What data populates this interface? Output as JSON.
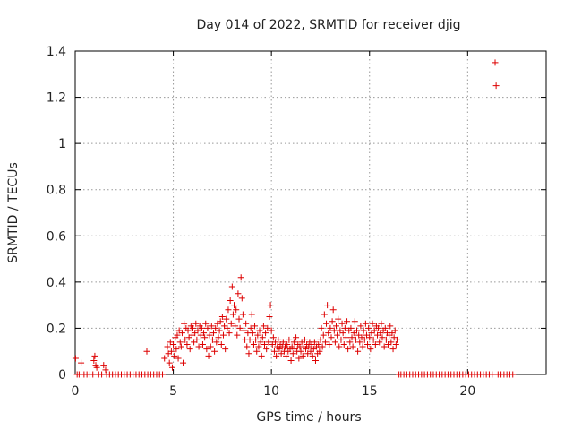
{
  "chart_data": {
    "type": "scatter",
    "title": "Day 014 of 2022, SRMTID for receiver djig",
    "xlabel": "GPS time / hours",
    "ylabel": "SRMTID / TECUs",
    "xlim": [
      0,
      24
    ],
    "ylim": [
      0,
      1.4
    ],
    "xticks": [
      0,
      5,
      10,
      15,
      20
    ],
    "xtick_labels": [
      "0",
      "5",
      "10",
      "15",
      "20"
    ],
    "yticks": [
      0,
      0.2,
      0.4,
      0.6,
      0.8,
      1.0,
      1.2,
      1.4
    ],
    "ytick_labels": [
      "0",
      "0.2",
      "0.4",
      "0.6",
      "0.8",
      "1",
      "1.2",
      "1.4"
    ],
    "grid": true,
    "marker": "+",
    "marker_color": "#dd0000",
    "series": [
      {
        "name": "SRMTID",
        "points": [
          [
            0.02,
            0.07
          ],
          [
            0.1,
            0.0
          ],
          [
            0.2,
            0.0
          ],
          [
            0.3,
            0.05
          ],
          [
            0.45,
            0.0
          ],
          [
            0.6,
            0.0
          ],
          [
            0.75,
            0.0
          ],
          [
            0.9,
            0.0
          ],
          [
            0.95,
            0.06
          ],
          [
            1.0,
            0.08
          ],
          [
            1.05,
            0.04
          ],
          [
            1.1,
            0.03
          ],
          [
            1.2,
            0.0
          ],
          [
            1.35,
            0.0
          ],
          [
            1.45,
            0.04
          ],
          [
            1.55,
            0.02
          ],
          [
            1.6,
            0.0
          ],
          [
            1.75,
            0.0
          ],
          [
            1.9,
            0.0
          ],
          [
            2.05,
            0.0
          ],
          [
            2.2,
            0.0
          ],
          [
            2.35,
            0.0
          ],
          [
            2.5,
            0.0
          ],
          [
            2.65,
            0.0
          ],
          [
            2.8,
            0.0
          ],
          [
            2.95,
            0.0
          ],
          [
            3.1,
            0.0
          ],
          [
            3.25,
            0.0
          ],
          [
            3.4,
            0.0
          ],
          [
            3.55,
            0.0
          ],
          [
            3.65,
            0.1
          ],
          [
            3.7,
            0.0
          ],
          [
            3.85,
            0.0
          ],
          [
            4.0,
            0.0
          ],
          [
            4.15,
            0.0
          ],
          [
            4.3,
            0.0
          ],
          [
            4.45,
            0.0
          ],
          [
            4.55,
            0.07
          ],
          [
            4.7,
            0.12
          ],
          [
            4.75,
            0.09
          ],
          [
            4.8,
            0.05
          ],
          [
            4.85,
            0.14
          ],
          [
            4.9,
            0.1
          ],
          [
            4.95,
            0.03
          ],
          [
            5.0,
            0.13
          ],
          [
            5.05,
            0.08
          ],
          [
            5.1,
            0.16
          ],
          [
            5.15,
            0.11
          ],
          [
            5.2,
            0.17
          ],
          [
            5.25,
            0.07
          ],
          [
            5.3,
            0.19
          ],
          [
            5.35,
            0.14
          ],
          [
            5.4,
            0.12
          ],
          [
            5.45,
            0.18
          ],
          [
            5.5,
            0.05
          ],
          [
            5.55,
            0.22
          ],
          [
            5.6,
            0.15
          ],
          [
            5.65,
            0.2
          ],
          [
            5.7,
            0.13
          ],
          [
            5.75,
            0.19
          ],
          [
            5.8,
            0.16
          ],
          [
            5.85,
            0.11
          ],
          [
            5.9,
            0.21
          ],
          [
            5.95,
            0.17
          ],
          [
            6.0,
            0.2
          ],
          [
            6.05,
            0.14
          ],
          [
            6.1,
            0.18
          ],
          [
            6.15,
            0.22
          ],
          [
            6.2,
            0.15
          ],
          [
            6.25,
            0.19
          ],
          [
            6.3,
            0.12
          ],
          [
            6.35,
            0.21
          ],
          [
            6.4,
            0.17
          ],
          [
            6.45,
            0.2
          ],
          [
            6.5,
            0.13
          ],
          [
            6.55,
            0.18
          ],
          [
            6.6,
            0.16
          ],
          [
            6.65,
            0.22
          ],
          [
            6.7,
            0.11
          ],
          [
            6.75,
            0.2
          ],
          [
            6.8,
            0.08
          ],
          [
            6.85,
            0.17
          ],
          [
            6.9,
            0.12
          ],
          [
            6.95,
            0.21
          ],
          [
            7.0,
            0.15
          ],
          [
            7.05,
            0.18
          ],
          [
            7.1,
            0.1
          ],
          [
            7.15,
            0.2
          ],
          [
            7.2,
            0.14
          ],
          [
            7.25,
            0.22
          ],
          [
            7.3,
            0.16
          ],
          [
            7.35,
            0.19
          ],
          [
            7.4,
            0.23
          ],
          [
            7.45,
            0.13
          ],
          [
            7.5,
            0.25
          ],
          [
            7.55,
            0.17
          ],
          [
            7.6,
            0.21
          ],
          [
            7.65,
            0.11
          ],
          [
            7.7,
            0.24
          ],
          [
            7.75,
            0.2
          ],
          [
            7.8,
            0.28
          ],
          [
            7.85,
            0.18
          ],
          [
            7.9,
            0.32
          ],
          [
            7.95,
            0.22
          ],
          [
            8.0,
            0.38
          ],
          [
            8.05,
            0.26
          ],
          [
            8.1,
            0.3
          ],
          [
            8.15,
            0.21
          ],
          [
            8.2,
            0.28
          ],
          [
            8.25,
            0.17
          ],
          [
            8.3,
            0.35
          ],
          [
            8.35,
            0.24
          ],
          [
            8.4,
            0.2
          ],
          [
            8.45,
            0.42
          ],
          [
            8.5,
            0.33
          ],
          [
            8.55,
            0.26
          ],
          [
            8.6,
            0.19
          ],
          [
            8.65,
            0.15
          ],
          [
            8.7,
            0.22
          ],
          [
            8.75,
            0.12
          ],
          [
            8.8,
            0.18
          ],
          [
            8.85,
            0.09
          ],
          [
            8.9,
            0.15
          ],
          [
            8.95,
            0.2
          ],
          [
            9.0,
            0.26
          ],
          [
            9.05,
            0.18
          ],
          [
            9.1,
            0.13
          ],
          [
            9.15,
            0.21
          ],
          [
            9.2,
            0.15
          ],
          [
            9.25,
            0.1
          ],
          [
            9.3,
            0.17
          ],
          [
            9.35,
            0.12
          ],
          [
            9.4,
            0.19
          ],
          [
            9.45,
            0.14
          ],
          [
            9.5,
            0.08
          ],
          [
            9.55,
            0.16
          ],
          [
            9.6,
            0.21
          ],
          [
            9.65,
            0.13
          ],
          [
            9.7,
            0.18
          ],
          [
            9.75,
            0.11
          ],
          [
            9.8,
            0.2
          ],
          [
            9.85,
            0.14
          ],
          [
            9.9,
            0.25
          ],
          [
            9.95,
            0.3
          ],
          [
            10.0,
            0.19
          ],
          [
            10.05,
            0.13
          ],
          [
            10.1,
            0.16
          ],
          [
            10.15,
            0.1
          ],
          [
            10.2,
            0.14
          ],
          [
            10.25,
            0.08
          ],
          [
            10.3,
            0.12
          ],
          [
            10.35,
            0.15
          ],
          [
            10.4,
            0.11
          ],
          [
            10.45,
            0.13
          ],
          [
            10.5,
            0.09
          ],
          [
            10.55,
            0.12
          ],
          [
            10.6,
            0.14
          ],
          [
            10.65,
            0.1
          ],
          [
            10.7,
            0.12
          ],
          [
            10.75,
            0.08
          ],
          [
            10.8,
            0.13
          ],
          [
            10.85,
            0.1
          ],
          [
            10.9,
            0.15
          ],
          [
            10.95,
            0.11
          ],
          [
            11.0,
            0.06
          ],
          [
            11.05,
            0.12
          ],
          [
            11.1,
            0.09
          ],
          [
            11.15,
            0.14
          ],
          [
            11.2,
            0.11
          ],
          [
            11.25,
            0.16
          ],
          [
            11.3,
            0.1
          ],
          [
            11.35,
            0.13
          ],
          [
            11.4,
            0.07
          ],
          [
            11.45,
            0.12
          ],
          [
            11.5,
            0.1
          ],
          [
            11.55,
            0.14
          ],
          [
            11.6,
            0.08
          ],
          [
            11.65,
            0.12
          ],
          [
            11.7,
            0.15
          ],
          [
            11.75,
            0.11
          ],
          [
            11.8,
            0.13
          ],
          [
            11.85,
            0.09
          ],
          [
            11.9,
            0.12
          ],
          [
            11.95,
            0.14
          ],
          [
            12.0,
            0.1
          ],
          [
            12.05,
            0.13
          ],
          [
            12.1,
            0.08
          ],
          [
            12.15,
            0.11
          ],
          [
            12.2,
            0.14
          ],
          [
            12.25,
            0.06
          ],
          [
            12.3,
            0.12
          ],
          [
            12.35,
            0.09
          ],
          [
            12.4,
            0.13
          ],
          [
            12.45,
            0.1
          ],
          [
            12.5,
            0.15
          ],
          [
            12.55,
            0.2
          ],
          [
            12.6,
            0.12
          ],
          [
            12.65,
            0.17
          ],
          [
            12.7,
            0.26
          ],
          [
            12.75,
            0.14
          ],
          [
            12.8,
            0.22
          ],
          [
            12.85,
            0.3
          ],
          [
            12.9,
            0.18
          ],
          [
            12.95,
            0.13
          ],
          [
            13.0,
            0.2
          ],
          [
            13.05,
            0.16
          ],
          [
            13.1,
            0.23
          ],
          [
            13.15,
            0.28
          ],
          [
            13.2,
            0.19
          ],
          [
            13.25,
            0.14
          ],
          [
            13.3,
            0.21
          ],
          [
            13.35,
            0.17
          ],
          [
            13.4,
            0.24
          ],
          [
            13.45,
            0.12
          ],
          [
            13.5,
            0.19
          ],
          [
            13.55,
            0.15
          ],
          [
            13.6,
            0.22
          ],
          [
            13.65,
            0.18
          ],
          [
            13.7,
            0.13
          ],
          [
            13.75,
            0.2
          ],
          [
            13.8,
            0.16
          ],
          [
            13.85,
            0.23
          ],
          [
            13.9,
            0.11
          ],
          [
            13.95,
            0.19
          ],
          [
            14.0,
            0.14
          ],
          [
            14.05,
            0.2
          ],
          [
            14.1,
            0.16
          ],
          [
            14.15,
            0.12
          ],
          [
            14.2,
            0.18
          ],
          [
            14.25,
            0.23
          ],
          [
            14.3,
            0.15
          ],
          [
            14.35,
            0.19
          ],
          [
            14.4,
            0.1
          ],
          [
            14.45,
            0.17
          ],
          [
            14.5,
            0.14
          ],
          [
            14.55,
            0.21
          ],
          [
            14.6,
            0.16
          ],
          [
            14.65,
            0.12
          ],
          [
            14.7,
            0.19
          ],
          [
            14.75,
            0.15
          ],
          [
            14.8,
            0.22
          ],
          [
            14.85,
            0.17
          ],
          [
            14.9,
            0.13
          ],
          [
            14.95,
            0.2
          ],
          [
            15.0,
            0.16
          ],
          [
            15.05,
            0.11
          ],
          [
            15.1,
            0.18
          ],
          [
            15.15,
            0.22
          ],
          [
            15.2,
            0.15
          ],
          [
            15.25,
            0.19
          ],
          [
            15.3,
            0.13
          ],
          [
            15.35,
            0.21
          ],
          [
            15.4,
            0.17
          ],
          [
            15.45,
            0.2
          ],
          [
            15.5,
            0.14
          ],
          [
            15.55,
            0.18
          ],
          [
            15.6,
            0.22
          ],
          [
            15.65,
            0.16
          ],
          [
            15.7,
            0.19
          ],
          [
            15.75,
            0.12
          ],
          [
            15.8,
            0.2
          ],
          [
            15.85,
            0.15
          ],
          [
            15.9,
            0.18
          ],
          [
            15.95,
            0.13
          ],
          [
            16.0,
            0.17
          ],
          [
            16.05,
            0.21
          ],
          [
            16.1,
            0.14
          ],
          [
            16.15,
            0.18
          ],
          [
            16.2,
            0.11
          ],
          [
            16.25,
            0.16
          ],
          [
            16.3,
            0.19
          ],
          [
            16.35,
            0.13
          ],
          [
            16.4,
            0.15
          ],
          [
            16.5,
            0.0
          ],
          [
            16.6,
            0.0
          ],
          [
            16.75,
            0.0
          ],
          [
            16.9,
            0.0
          ],
          [
            17.05,
            0.0
          ],
          [
            17.2,
            0.0
          ],
          [
            17.35,
            0.0
          ],
          [
            17.5,
            0.0
          ],
          [
            17.65,
            0.0
          ],
          [
            17.8,
            0.0
          ],
          [
            17.95,
            0.0
          ],
          [
            18.1,
            0.0
          ],
          [
            18.25,
            0.0
          ],
          [
            18.4,
            0.0
          ],
          [
            18.55,
            0.0
          ],
          [
            18.7,
            0.0
          ],
          [
            18.85,
            0.0
          ],
          [
            19.0,
            0.0
          ],
          [
            19.15,
            0.0
          ],
          [
            19.3,
            0.0
          ],
          [
            19.45,
            0.0
          ],
          [
            19.6,
            0.0
          ],
          [
            19.75,
            0.0
          ],
          [
            19.9,
            0.0
          ],
          [
            20.05,
            0.0
          ],
          [
            20.2,
            0.0
          ],
          [
            20.35,
            0.0
          ],
          [
            20.5,
            0.0
          ],
          [
            20.65,
            0.0
          ],
          [
            20.8,
            0.0
          ],
          [
            20.95,
            0.0
          ],
          [
            21.1,
            0.0
          ],
          [
            21.25,
            0.0
          ],
          [
            21.4,
            1.35
          ],
          [
            21.45,
            1.25
          ],
          [
            21.55,
            0.0
          ],
          [
            21.7,
            0.0
          ],
          [
            21.85,
            0.0
          ],
          [
            22.0,
            0.0
          ],
          [
            22.15,
            0.0
          ],
          [
            22.3,
            0.0
          ]
        ]
      }
    ]
  }
}
